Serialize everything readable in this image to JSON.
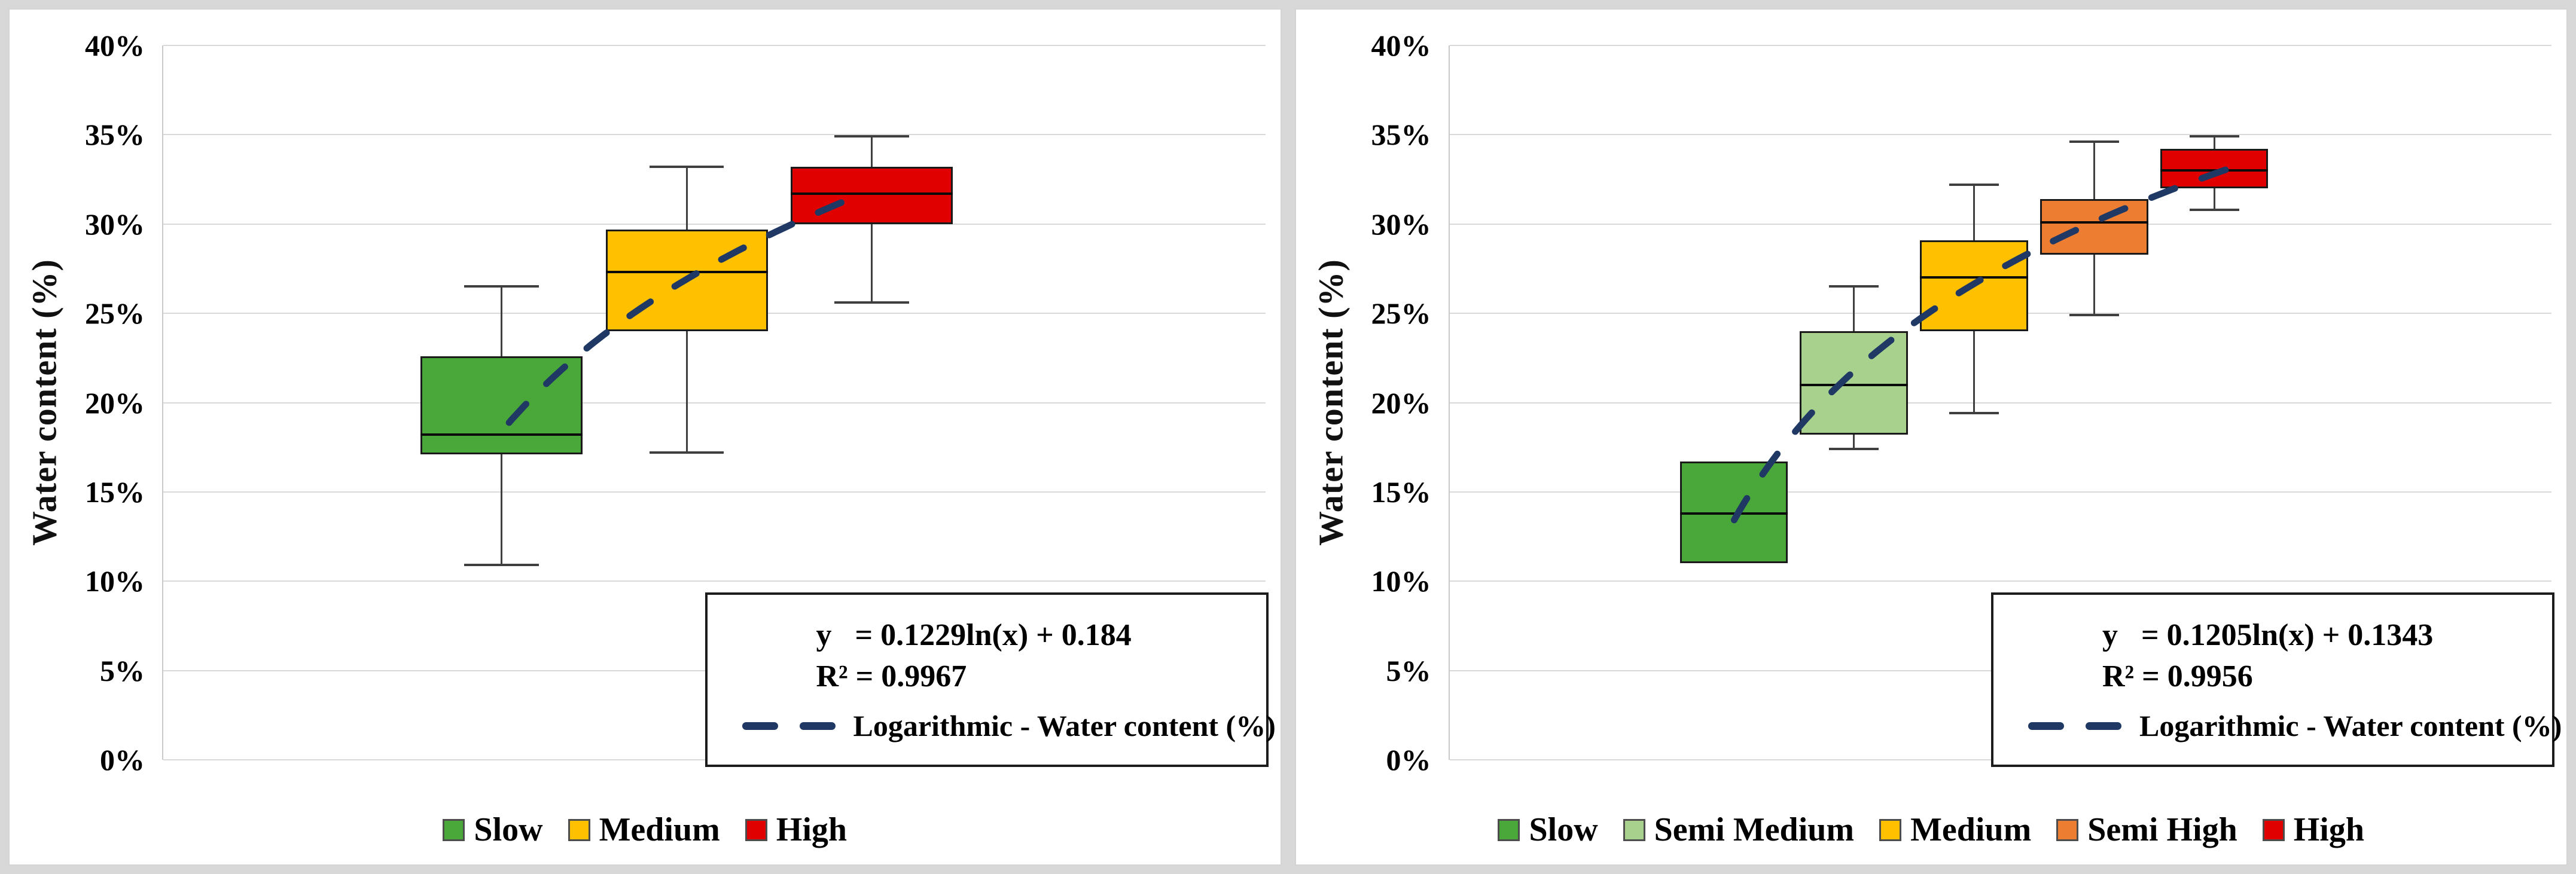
{
  "frame": {
    "background": "#D8D8D8",
    "panel_background": "#FFFFFF",
    "gridline_color": "#D9D9D9"
  },
  "chart_data": [
    {
      "type": "box",
      "title": "",
      "xlabel": "",
      "ylabel": "Water content (%)",
      "ylim": [
        0,
        40
      ],
      "grid": true,
      "legend_position": "bottom",
      "yticks": [
        {
          "label": "0%",
          "value": 0
        },
        {
          "label": "5%",
          "value": 5
        },
        {
          "label": "10%",
          "value": 10
        },
        {
          "label": "15%",
          "value": 15
        },
        {
          "label": "20%",
          "value": 20
        },
        {
          "label": "25%",
          "value": 25
        },
        {
          "label": "30%",
          "value": 30
        },
        {
          "label": "35%",
          "value": 35
        },
        {
          "label": "40%",
          "value": 40
        }
      ],
      "categories": [
        "Slow",
        "Medium",
        "High"
      ],
      "series": [
        {
          "name": "Slow",
          "color": "#4AA83A",
          "whisker_low": 10.9,
          "q1": 17.1,
          "median": 18.2,
          "q3": 22.6,
          "whisker_high": 26.5
        },
        {
          "name": "Medium",
          "color": "#FFC000",
          "whisker_low": 17.2,
          "q1": 24.0,
          "median": 27.3,
          "q3": 29.7,
          "whisker_high": 33.2
        },
        {
          "name": "High",
          "color": "#E00000",
          "whisker_low": 25.6,
          "q1": 30.0,
          "median": 31.7,
          "q3": 33.2,
          "whisker_high": 34.9
        }
      ],
      "trendline": {
        "label": "Logarithmic - Water content (%)",
        "equation_display": "y   = 0.1229ln(x) + 0.184",
        "r2_display": "R² = 0.9967",
        "a": 0.1229,
        "b": 0.184,
        "t_start": 1.04,
        "t_end": 2.86,
        "color": "#1F3864"
      },
      "layout": {
        "centers_pct": [
          30.7,
          47.5,
          64.3
        ],
        "box_width_pct": 14.7
      }
    },
    {
      "type": "box",
      "title": "",
      "xlabel": "",
      "ylabel": "Water content (%)",
      "ylim": [
        0,
        40
      ],
      "grid": true,
      "legend_position": "bottom",
      "yticks": [
        {
          "label": "0%",
          "value": 0
        },
        {
          "label": "5%",
          "value": 5
        },
        {
          "label": "10%",
          "value": 10
        },
        {
          "label": "15%",
          "value": 15
        },
        {
          "label": "20%",
          "value": 20
        },
        {
          "label": "25%",
          "value": 25
        },
        {
          "label": "30%",
          "value": 30
        },
        {
          "label": "35%",
          "value": 35
        },
        {
          "label": "40%",
          "value": 40
        }
      ],
      "categories": [
        "Slow",
        "Semi Medium",
        "Medium",
        "Semi High",
        "High"
      ],
      "series": [
        {
          "name": "Slow",
          "color": "#4AA83A",
          "whisker_low": null,
          "q1": 11.0,
          "median": 13.8,
          "q3": 16.7,
          "whisker_high": null
        },
        {
          "name": "Semi Medium",
          "color": "#A9D18E",
          "whisker_low": 17.4,
          "q1": 18.2,
          "median": 21.0,
          "q3": 24.0,
          "whisker_high": 26.5
        },
        {
          "name": "Medium",
          "color": "#FFC000",
          "whisker_low": 19.4,
          "q1": 24.0,
          "median": 27.0,
          "q3": 29.1,
          "whisker_high": 32.2
        },
        {
          "name": "Semi High",
          "color": "#ED7D31",
          "whisker_low": 24.9,
          "q1": 28.3,
          "median": 30.1,
          "q3": 31.4,
          "whisker_high": 34.6
        },
        {
          "name": "High",
          "color": "#E00000",
          "whisker_low": 30.8,
          "q1": 32.0,
          "median": 33.0,
          "q3": 34.2,
          "whisker_high": 34.9
        }
      ],
      "trendline": {
        "label": "Logarithmic - Water content (%)",
        "equation_display": "y   = 0.1205ln(x) + 0.1343",
        "r2_display": "R² = 0.9956",
        "a": 0.1205,
        "b": 0.1343,
        "t_start": 1.0,
        "t_end": 5.1,
        "color": "#1F3864"
      },
      "layout": {
        "centers_pct": [
          25.8,
          36.7,
          47.6,
          58.5,
          69.4
        ],
        "box_width_pct": 9.8
      }
    }
  ]
}
